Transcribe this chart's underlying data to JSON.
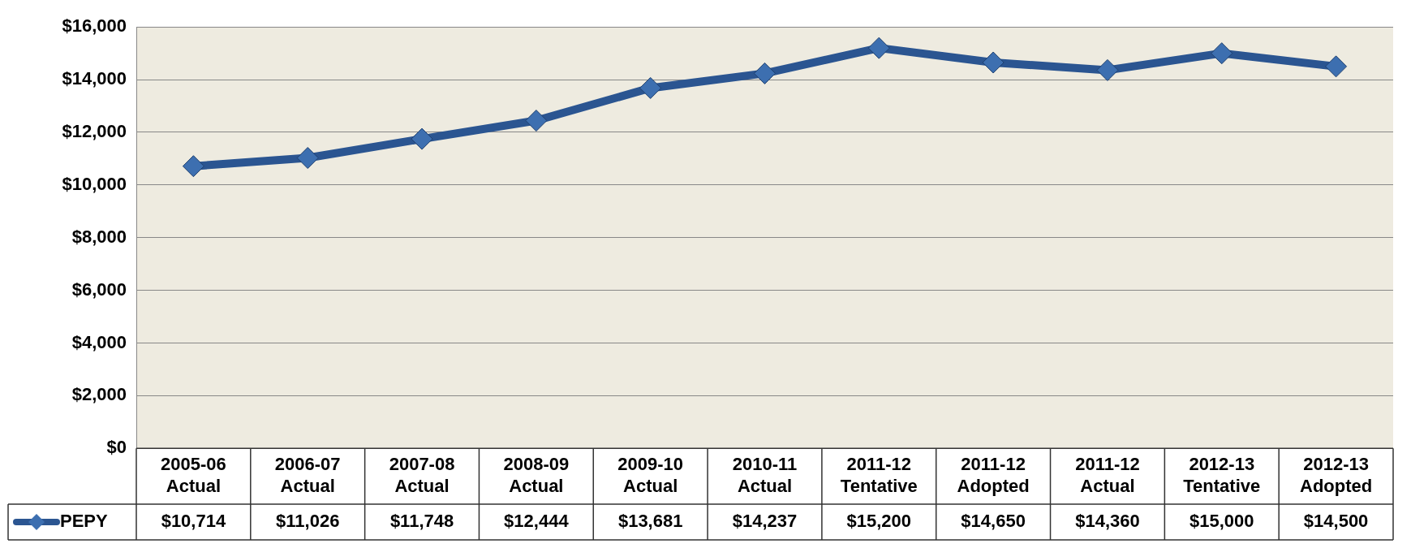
{
  "chart_data": {
    "type": "line",
    "categories": [
      "2005-06 Actual",
      "2006-07 Actual",
      "2007-08 Actual",
      "2008-09 Actual",
      "2009-10 Actual",
      "2010-11 Actual",
      "2011-12 Tentative",
      "2011-12 Adopted",
      "2011-12 Actual",
      "2012-13 Tentative",
      "2012-13 Adopted"
    ],
    "series": [
      {
        "name": "PEPY",
        "color": "#2b5591",
        "values": [
          10714,
          11026,
          11748,
          12444,
          13681,
          14237,
          15200,
          14650,
          14360,
          15000,
          14500
        ],
        "value_labels": [
          "$10,714",
          "$11,026",
          "$11,748",
          "$12,444",
          "$13,681",
          "$14,237",
          "$15,200",
          "$14,650",
          "$14,360",
          "$15,000",
          "$14,500"
        ]
      }
    ],
    "ylim": [
      0,
      16000
    ],
    "yticks": [
      {
        "value": 0,
        "label": "$0"
      },
      {
        "value": 2000,
        "label": "$2,000"
      },
      {
        "value": 4000,
        "label": "$4,000"
      },
      {
        "value": 6000,
        "label": "$6,000"
      },
      {
        "value": 8000,
        "label": "$8,000"
      },
      {
        "value": 10000,
        "label": "$10,000"
      },
      {
        "value": 12000,
        "label": "$12,000"
      },
      {
        "value": 14000,
        "label": "$14,000"
      },
      {
        "value": 16000,
        "label": "$16,000"
      }
    ],
    "grid": "y",
    "legend": "bottom left",
    "marker": "diamond",
    "line_style": "solid"
  }
}
